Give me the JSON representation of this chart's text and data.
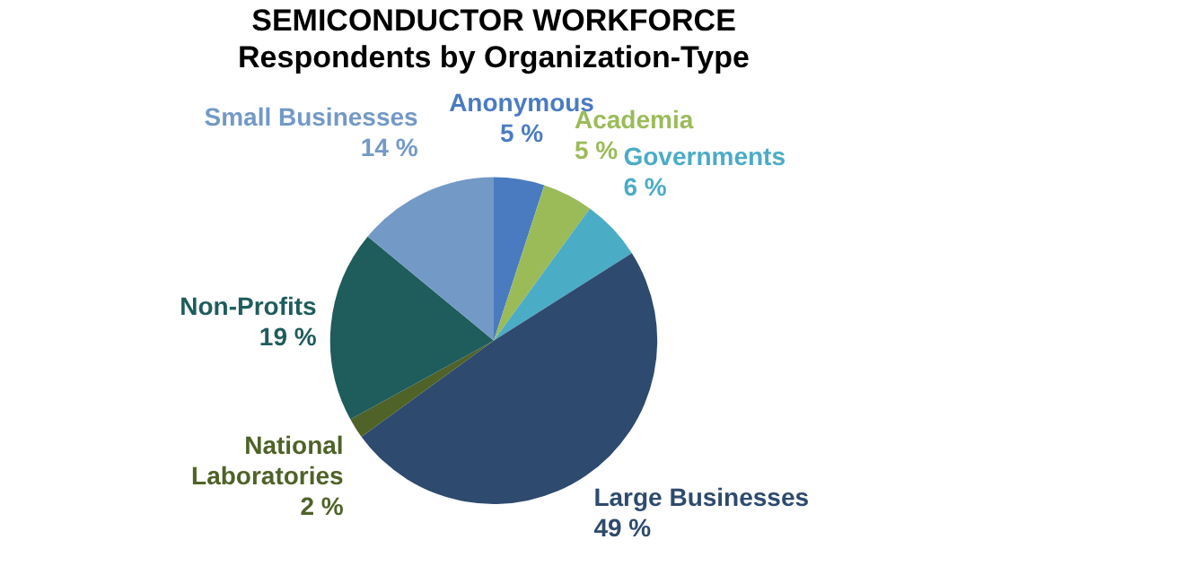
{
  "chart_data": {
    "type": "pie",
    "title": "SEMICONDUCTOR WORKFORCE",
    "subtitle": "Respondents by Organization-Type",
    "categories": [
      "Anonymous",
      "Academia",
      "Governments",
      "Large Businesses",
      "National Laboratories",
      "Non-Profits",
      "Small Businesses"
    ],
    "values": [
      5,
      5,
      6,
      49,
      2,
      19,
      14
    ],
    "value_labels": [
      "5 %",
      "5 %",
      "6 %",
      "49 %",
      "2 %",
      "19 %",
      "14 %"
    ],
    "colors": [
      "#4a7bc0",
      "#9bbb59",
      "#4bacc6",
      "#2e4a6e",
      "#4f6228",
      "#1f5c5c",
      "#7399c6"
    ],
    "legend": false
  }
}
